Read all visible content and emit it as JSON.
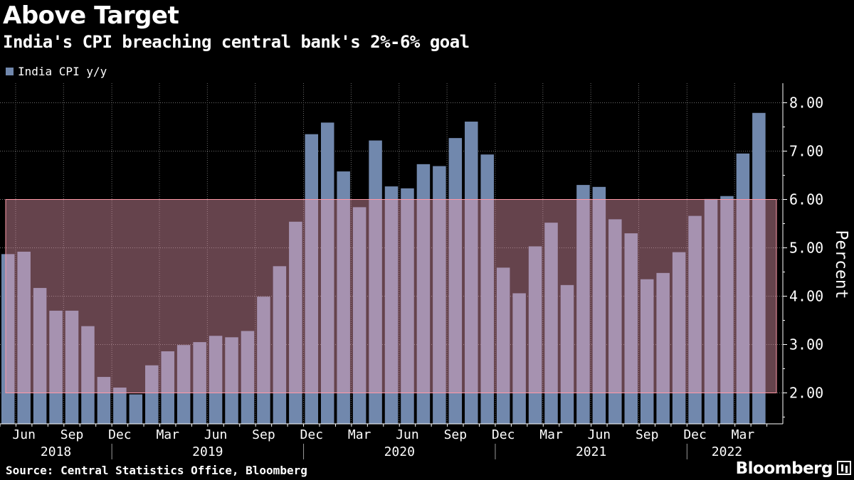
{
  "title": "Above Target",
  "subtitle": "India's CPI breaching central bank's 2%-6% goal",
  "source": "Source: Central Statistics Office, Bloomberg",
  "brand": "Bloomberg",
  "colors": {
    "background": "#000000",
    "bar": "#7188ad",
    "band_fill": "#f0a0b4",
    "band_stroke": "#ff9aa8",
    "grid": "#6b6b6b",
    "text": "#ffffff"
  },
  "chart_data": {
    "type": "bar",
    "title": "Above Target",
    "subtitle": "India's CPI breaching central bank's 2%-6% goal",
    "ylabel": "Percent",
    "ylim": [
      1.35,
      8.35
    ],
    "legend": "top-left",
    "grid": true,
    "series": [
      {
        "name": "India CPI y/y",
        "values": [
          4.87,
          4.92,
          4.17,
          3.7,
          3.7,
          3.38,
          2.33,
          2.11,
          1.97,
          2.57,
          2.86,
          2.99,
          3.05,
          3.18,
          3.15,
          3.28,
          3.99,
          4.62,
          5.54,
          7.35,
          7.59,
          6.58,
          5.84,
          7.22,
          6.27,
          6.23,
          6.73,
          6.69,
          7.27,
          7.61,
          6.93,
          4.59,
          4.06,
          5.03,
          5.52,
          4.23,
          6.3,
          6.26,
          5.59,
          5.3,
          4.35,
          4.48,
          4.91,
          5.66,
          6.01,
          6.07,
          6.95,
          7.79
        ]
      }
    ],
    "target_band": {
      "low": 2.0,
      "high": 6.0,
      "label": "2%-6% goal"
    },
    "yticks": [
      {
        "value": 2,
        "label": "2.00"
      },
      {
        "value": 3,
        "label": "3.00"
      },
      {
        "value": 4,
        "label": "4.00"
      },
      {
        "value": 5,
        "label": "5.00"
      },
      {
        "value": 6,
        "label": "6.00"
      },
      {
        "value": 7,
        "label": "7.00"
      },
      {
        "value": 8,
        "label": "8.00"
      }
    ],
    "month_ticks": [
      {
        "index": 1,
        "label": "Jun"
      },
      {
        "index": 4,
        "label": "Sep"
      },
      {
        "index": 7,
        "label": "Dec"
      },
      {
        "index": 10,
        "label": "Mar"
      },
      {
        "index": 13,
        "label": "Jun"
      },
      {
        "index": 16,
        "label": "Sep"
      },
      {
        "index": 19,
        "label": "Dec"
      },
      {
        "index": 22,
        "label": "Mar"
      },
      {
        "index": 25,
        "label": "Jun"
      },
      {
        "index": 28,
        "label": "Sep"
      },
      {
        "index": 31,
        "label": "Dec"
      },
      {
        "index": 34,
        "label": "Mar"
      },
      {
        "index": 37,
        "label": "Jun"
      },
      {
        "index": 40,
        "label": "Sep"
      },
      {
        "index": 43,
        "label": "Dec"
      },
      {
        "index": 46,
        "label": "Mar"
      }
    ],
    "years": [
      {
        "label": "2018",
        "start": 0,
        "end": 7
      },
      {
        "label": "2019",
        "start": 7,
        "end": 19
      },
      {
        "label": "2020",
        "start": 19,
        "end": 31
      },
      {
        "label": "2021",
        "start": 31,
        "end": 43
      },
      {
        "label": "2022",
        "start": 43,
        "end": 48
      }
    ]
  }
}
